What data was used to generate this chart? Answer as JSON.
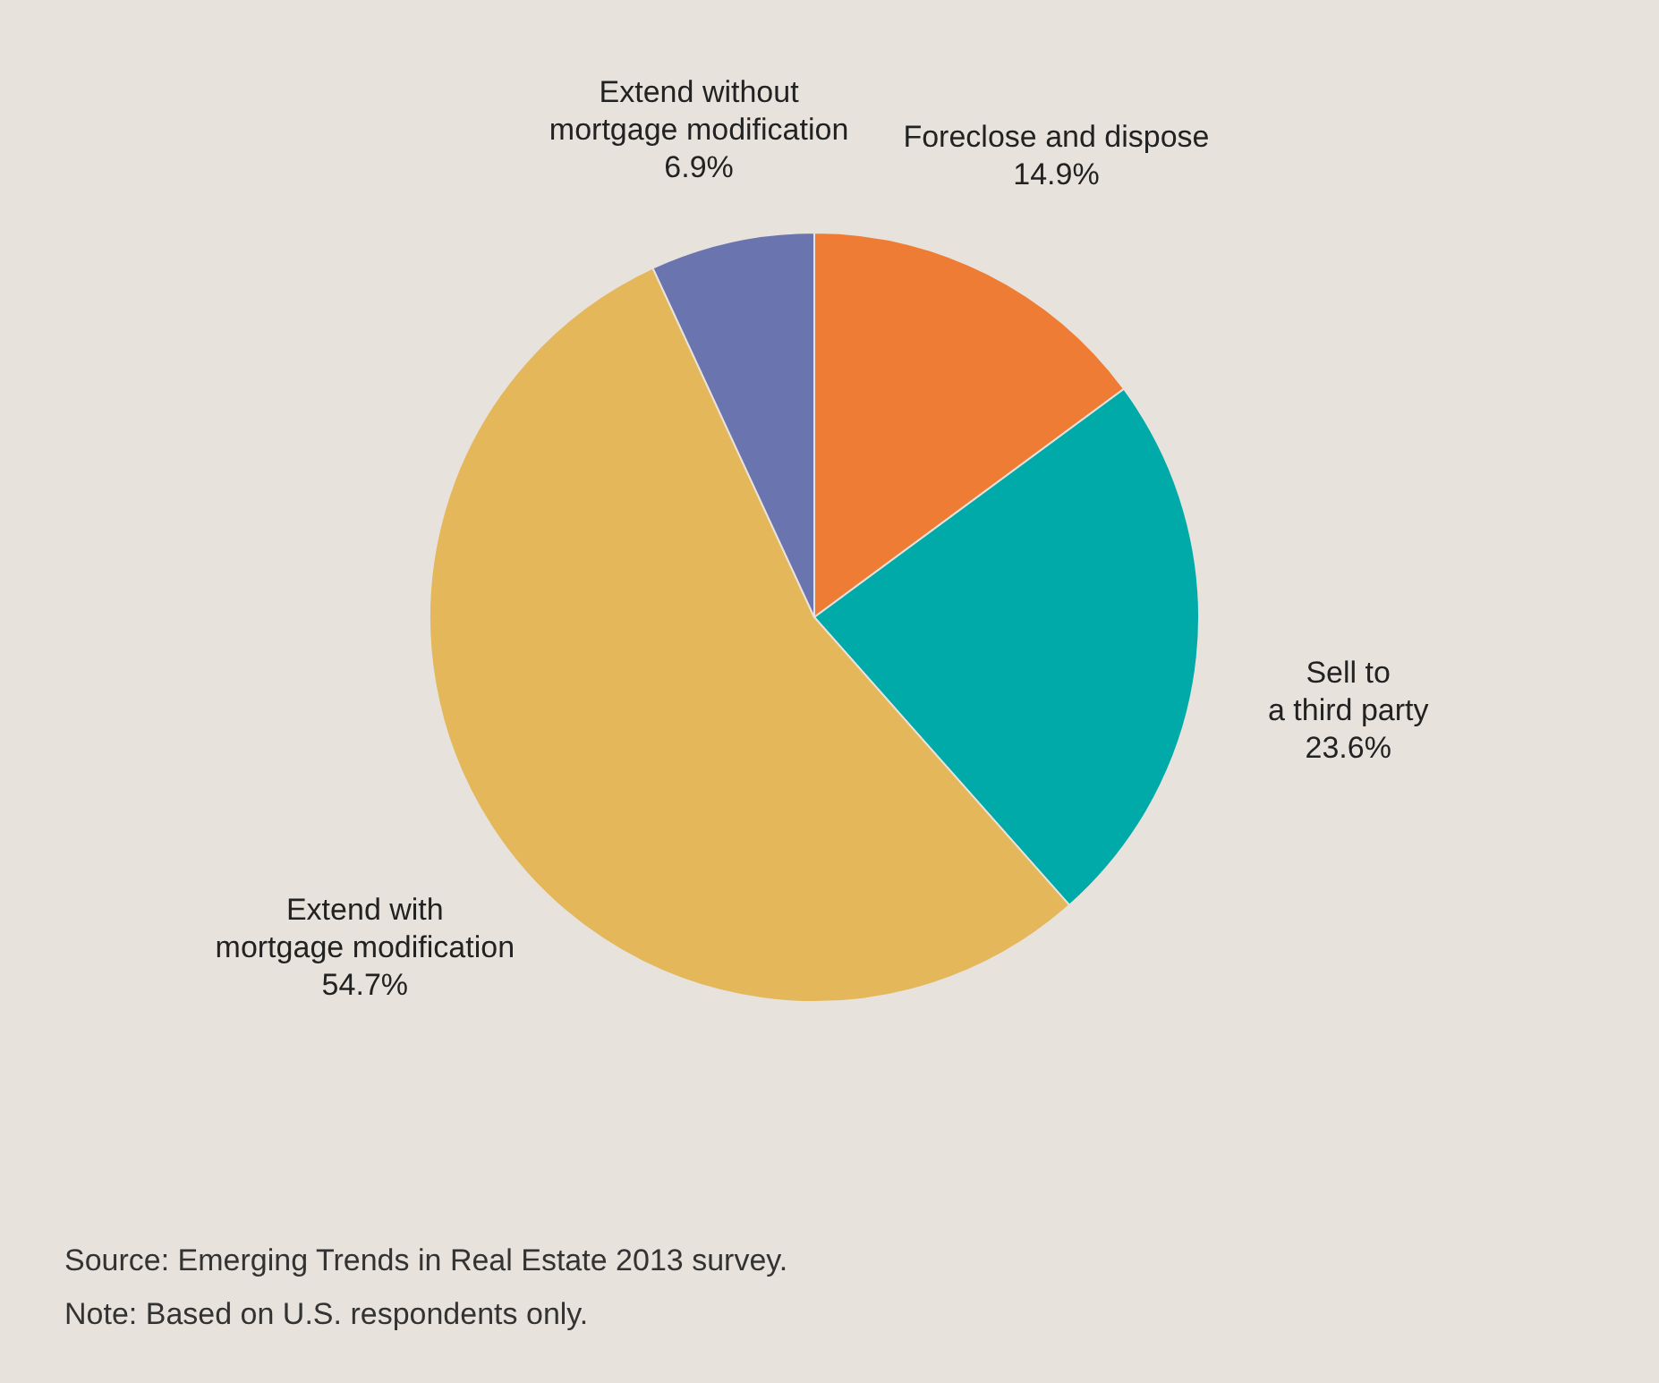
{
  "chart_data": {
    "type": "pie",
    "categories": [
      "Foreclose and dispose",
      "Sell to a third party",
      "Extend with mortgage modification",
      "Extend without mortgage modification"
    ],
    "values": [
      14.9,
      23.6,
      54.7,
      6.9
    ],
    "value_labels": [
      "14.9%",
      "23.6%",
      "54.7%",
      "6.9%"
    ],
    "colors": [
      "#ee7c34",
      "#00aaa9",
      "#e3b75a",
      "#6a74ae"
    ],
    "legend": false,
    "annotations": [
      "Source: Emerging Trends in Real Estate 2013 survey.",
      "Note: Based on U.S. respondents only."
    ]
  }
}
